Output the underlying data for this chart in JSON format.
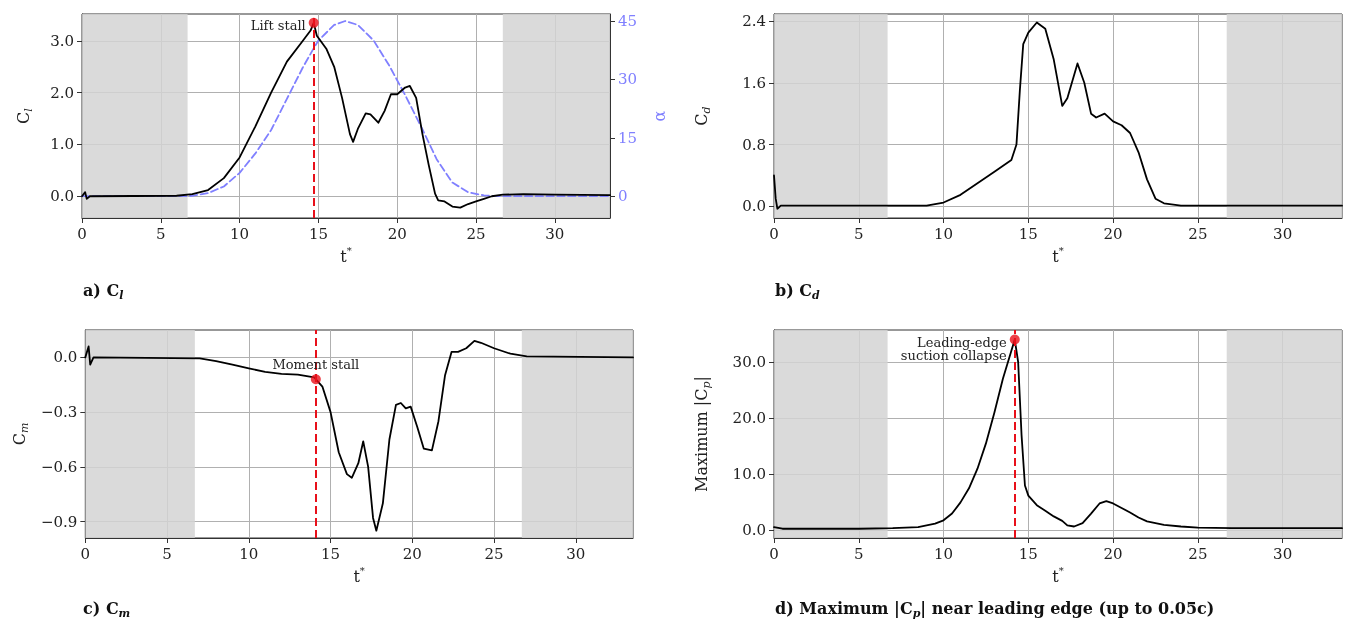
{
  "chart_data": [
    {
      "type": "line",
      "title": "a) C$_{l}$",
      "xlabel": "t$^{*}$",
      "ylabel": "C$_{l}$",
      "y2label": "α",
      "xlim": [
        0,
        33.5
      ],
      "xticks": [
        0,
        5,
        10,
        15,
        20,
        25,
        30
      ],
      "ylim": [
        -0.42,
        3.52
      ],
      "yticks": [
        {
          "value": 0,
          "label": "0.0"
        },
        {
          "value": 1,
          "label": "1.0"
        },
        {
          "value": 2,
          "label": "2.0"
        },
        {
          "value": 3,
          "label": "3.0"
        }
      ],
      "y2lim": [
        -5.6,
        46.8
      ],
      "y2ticks": [
        0,
        15,
        30,
        45
      ],
      "grid": true,
      "marker": "none",
      "bands": [
        {
          "axis": "x",
          "from": 0,
          "to": 6.7,
          "color": "#d3d3d3"
        },
        {
          "axis": "x",
          "from": 26.7,
          "to": 33.5,
          "color": "#d3d3d3"
        }
      ],
      "ref_lines": [
        {
          "axis": "x",
          "value": 14.7,
          "color": "#e8101a",
          "line_style": "dashed"
        }
      ],
      "annotations": [
        {
          "text": "Lift stall",
          "x": 14.7,
          "y": 3.35
        }
      ],
      "series": [
        {
          "color": "#000000",
          "line_style": "solid",
          "x": [
            0,
            0.2,
            0.3,
            0.5,
            6,
            7,
            8,
            9,
            10,
            11,
            12,
            13,
            14,
            14.5,
            14.7,
            14.9,
            15.5,
            16,
            16.5,
            17,
            17.2,
            17.5,
            18,
            18.3,
            18.8,
            19.2,
            19.6,
            20,
            20.5,
            20.8,
            21.2,
            21.6,
            22,
            22.4,
            22.6,
            23,
            23.5,
            24,
            24.5,
            25,
            25.5,
            26,
            26.7,
            28,
            30,
            33.5
          ],
          "values": [
            0,
            0.08,
            -0.05,
            0,
            0.01,
            0.04,
            0.12,
            0.35,
            0.75,
            1.35,
            2.0,
            2.6,
            3.0,
            3.2,
            3.35,
            3.1,
            2.85,
            2.5,
            1.9,
            1.2,
            1.05,
            1.3,
            1.6,
            1.58,
            1.42,
            1.65,
            1.97,
            1.97,
            2.1,
            2.13,
            1.9,
            1.2,
            0.6,
            0.05,
            -0.08,
            -0.1,
            -0.2,
            -0.22,
            -0.15,
            -0.1,
            -0.05,
            0,
            0.03,
            0.04,
            0.03,
            0.02
          ]
        },
        {
          "color": "#8080ff",
          "line_style": "dashed",
          "axis": "y2",
          "x": [
            0,
            6.7,
            7,
            8,
            9,
            10,
            11,
            12,
            13,
            14,
            14.7,
            15,
            16,
            16.7,
            17.5,
            18.5,
            19.5,
            20.5,
            21.5,
            22.5,
            23.5,
            24.5,
            25.5,
            26.7,
            33.5
          ],
          "values": [
            0,
            0,
            0.1,
            0.8,
            2.5,
            6,
            11,
            17,
            25,
            33,
            38,
            40,
            44,
            45,
            44,
            40,
            33.5,
            26,
            18,
            9.5,
            3.5,
            1,
            0.2,
            0,
            0
          ]
        },
        {
          "type": "scatter",
          "marker": "circle",
          "color": "#e8101a",
          "x": [
            14.7
          ],
          "values": [
            3.35
          ]
        }
      ]
    },
    {
      "type": "line",
      "title": "b) C$_{d}$",
      "xlabel": "t$^{*}$",
      "ylabel": "C$_{d}$",
      "xlim": [
        0,
        33.5
      ],
      "xticks": [
        0,
        5,
        10,
        15,
        20,
        25,
        30
      ],
      "ylim": [
        -0.15,
        2.49
      ],
      "yticks": [
        {
          "value": 0,
          "label": "0.0"
        },
        0.8,
        1.6,
        2.4
      ],
      "grid": true,
      "marker": "none",
      "bands": [
        {
          "axis": "x",
          "from": 0,
          "to": 6.7,
          "color": "#d3d3d3"
        },
        {
          "axis": "x",
          "from": 26.7,
          "to": 33.5,
          "color": "#d3d3d3"
        }
      ],
      "series": [
        {
          "color": "#000000",
          "line_style": "solid",
          "x": [
            0,
            0.1,
            0.2,
            0.4,
            9,
            10,
            11,
            12,
            13,
            14,
            14.3,
            14.5,
            14.7,
            15,
            15.5,
            16,
            16.5,
            17,
            17.3,
            17.9,
            18.3,
            18.7,
            19,
            19.5,
            20,
            20.5,
            21,
            21.5,
            22,
            22.5,
            23,
            24,
            33.5
          ],
          "values": [
            0.4,
            0.1,
            -0.03,
            0.01,
            0.01,
            0.05,
            0.15,
            0.3,
            0.45,
            0.6,
            0.8,
            1.5,
            2.1,
            2.25,
            2.38,
            2.3,
            1.9,
            1.3,
            1.4,
            1.85,
            1.6,
            1.2,
            1.15,
            1.2,
            1.1,
            1.05,
            0.95,
            0.7,
            0.35,
            0.1,
            0.04,
            0.01,
            0.01
          ]
        }
      ]
    },
    {
      "type": "line",
      "title": "c) C$_{m}$",
      "xlabel": "t$^{*}$",
      "ylabel": "C$_{m}$",
      "xlim": [
        0,
        33.5
      ],
      "xticks": [
        0,
        5,
        10,
        15,
        20,
        25,
        30
      ],
      "ylim": [
        -0.99,
        0.15
      ],
      "yticks": [
        {
          "value": -0.9,
          "label": "−0.9"
        },
        {
          "value": -0.6,
          "label": "−0.6"
        },
        {
          "value": -0.3,
          "label": "−0.3"
        },
        {
          "value": 0,
          "label": "0.0"
        }
      ],
      "grid": true,
      "marker": "none",
      "bands": [
        {
          "axis": "x",
          "from": 0,
          "to": 6.7,
          "color": "#d3d3d3"
        },
        {
          "axis": "x",
          "from": 26.7,
          "to": 33.5,
          "color": "#d3d3d3"
        }
      ],
      "ref_lines": [
        {
          "axis": "x",
          "value": 14.1,
          "color": "#e8101a",
          "line_style": "dashed"
        }
      ],
      "annotations": [
        {
          "text": "Moment stall",
          "x": 14.1,
          "y": -0.12
        }
      ],
      "series": [
        {
          "color": "#000000",
          "line_style": "solid",
          "x": [
            0,
            0.2,
            0.3,
            0.5,
            7,
            8,
            9,
            10,
            11,
            12,
            13,
            14,
            14.5,
            15,
            15.5,
            16,
            16.3,
            16.7,
            17,
            17.3,
            17.6,
            17.8,
            18.2,
            18.6,
            19,
            19.3,
            19.6,
            19.9,
            20.3,
            20.7,
            21.2,
            21.6,
            22,
            22.4,
            22.8,
            23.3,
            23.8,
            24.2,
            25,
            26,
            27,
            33.5
          ],
          "values": [
            0,
            0.06,
            -0.04,
            0,
            -0.005,
            -0.02,
            -0.04,
            -0.06,
            -0.08,
            -0.09,
            -0.095,
            -0.11,
            -0.16,
            -0.3,
            -0.52,
            -0.64,
            -0.66,
            -0.58,
            -0.46,
            -0.6,
            -0.88,
            -0.95,
            -0.8,
            -0.45,
            -0.26,
            -0.25,
            -0.28,
            -0.27,
            -0.38,
            -0.5,
            -0.51,
            -0.35,
            -0.1,
            0.03,
            0.03,
            0.05,
            0.09,
            0.08,
            0.05,
            0.02,
            0.005,
            0
          ]
        },
        {
          "type": "scatter",
          "marker": "circle",
          "color": "#e8101a",
          "x": [
            14.1
          ],
          "values": [
            -0.12
          ]
        }
      ]
    },
    {
      "type": "line",
      "title": "d) Maximum |C$_{p}$| near leading edge (up to 0.05c)",
      "xlabel": "t$^{*}$",
      "ylabel": "Maximum |C$_{p}$|",
      "xlim": [
        0,
        33.5
      ],
      "xticks": [
        0,
        5,
        10,
        15,
        20,
        25,
        30
      ],
      "ylim": [
        -1.35,
        35.7
      ],
      "yticks": [
        {
          "value": 0,
          "label": "0.0"
        },
        {
          "value": 10,
          "label": "10.0"
        },
        {
          "value": 20,
          "label": "20.0"
        },
        {
          "value": 30,
          "label": "30.0"
        }
      ],
      "grid": true,
      "marker": "none",
      "bands": [
        {
          "axis": "x",
          "from": 0,
          "to": 6.7,
          "color": "#d3d3d3"
        },
        {
          "axis": "x",
          "from": 26.7,
          "to": 33.5,
          "color": "#d3d3d3"
        }
      ],
      "ref_lines": [
        {
          "axis": "x",
          "value": 14.2,
          "color": "#e8101a",
          "line_style": "dashed"
        }
      ],
      "annotations": [
        {
          "text": "Leading-edge\n suction collapse",
          "x": 14.2,
          "y": 34
        }
      ],
      "series": [
        {
          "color": "#000000",
          "line_style": "solid",
          "x": [
            0,
            0.5,
            5,
            7,
            8.5,
            9.5,
            10,
            10.5,
            11,
            11.5,
            12,
            12.5,
            13,
            13.5,
            14,
            14.2,
            14.4,
            14.6,
            14.8,
            15,
            15.5,
            16,
            16.5,
            17,
            17.3,
            17.7,
            18.2,
            18.7,
            19.2,
            19.6,
            20,
            20.5,
            21,
            21.5,
            22,
            23,
            24,
            25,
            27,
            33.5
          ],
          "values": [
            0.6,
            0.3,
            0.3,
            0.4,
            0.6,
            1.2,
            1.8,
            3,
            5,
            7.5,
            11,
            15.5,
            21,
            27,
            32,
            34,
            30,
            17,
            8,
            6.2,
            4.5,
            3.5,
            2.5,
            1.7,
            0.9,
            0.7,
            1.3,
            3,
            4.8,
            5.2,
            4.8,
            4,
            3.2,
            2.3,
            1.6,
            1,
            0.7,
            0.5,
            0.4,
            0.4
          ]
        },
        {
          "type": "scatter",
          "marker": "circle",
          "color": "#e8101a",
          "x": [
            14.2
          ],
          "values": [
            34
          ]
        }
      ]
    }
  ]
}
